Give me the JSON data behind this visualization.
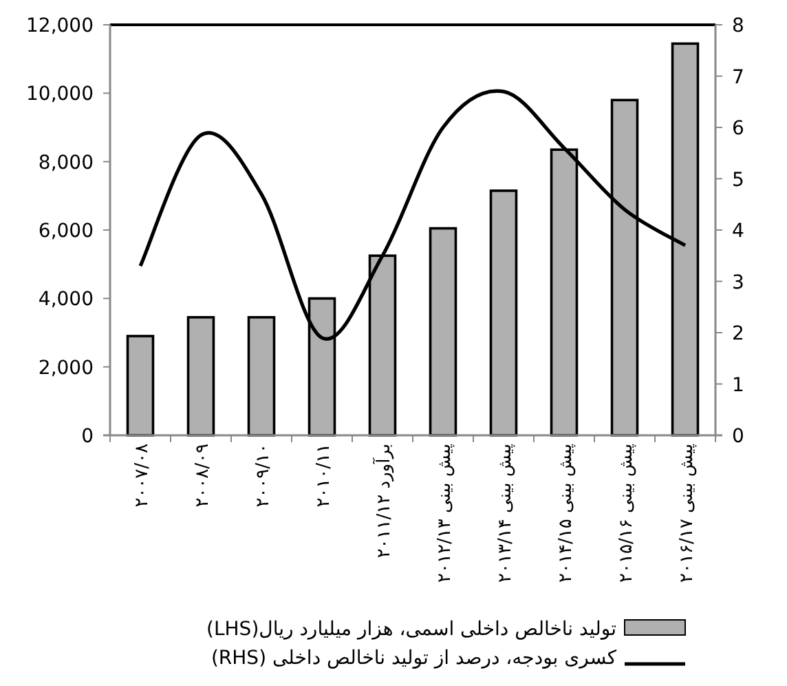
{
  "chart_data": {
    "type": "bar",
    "categories": [
      "۲۰۰۷/۰۸",
      "۲۰۰۸/۰۹",
      "۲۰۰۹/۱۰",
      "۲۰۱۰/۱۱",
      "برآورد ۲۰۱۱/۱۲",
      "پیش بینی ۲۰۱۲/۱۳",
      "پیش بینی ۲۰۱۳/۱۴",
      "پیش بینی ۲۰۱۴/۱۵",
      "پیش بینی ۲۰۱۵/۱۶",
      "پیش بینی ۲۰۱۶/۱۷"
    ],
    "series": [
      {
        "name": "تولید ناخالص داخلی اسمی، هزار میلیارد ریال(LHS)",
        "color": "#b0b0b0",
        "values": [
          2900,
          3450,
          3450,
          4000,
          5250,
          6050,
          7150,
          8350,
          9800,
          11450
        ]
      },
      {
        "name": "کسری بودجه، درصد از تولید ناخالص داخلی (RHS)",
        "type": "line",
        "axis": "y2",
        "color": "#000000",
        "values": [
          3.3,
          5.85,
          4.7,
          1.9,
          3.5,
          6.0,
          6.7,
          5.6,
          4.4,
          3.7
        ]
      }
    ],
    "ylim": [
      0,
      12000
    ],
    "yticks": [
      {
        "value": 0,
        "label": "0"
      },
      {
        "value": 2000,
        "label": "2,000"
      },
      {
        "value": 4000,
        "label": "4,000"
      },
      {
        "value": 6000,
        "label": "6,000"
      },
      {
        "value": 8000,
        "label": "8,000"
      },
      {
        "value": 10000,
        "label": "10,000"
      },
      {
        "value": 12000,
        "label": "12,000"
      }
    ],
    "y2lim": [
      0,
      8
    ],
    "y2ticks": [
      0,
      1,
      2,
      3,
      4,
      5,
      6,
      7,
      8
    ],
    "legend": "bottom"
  }
}
